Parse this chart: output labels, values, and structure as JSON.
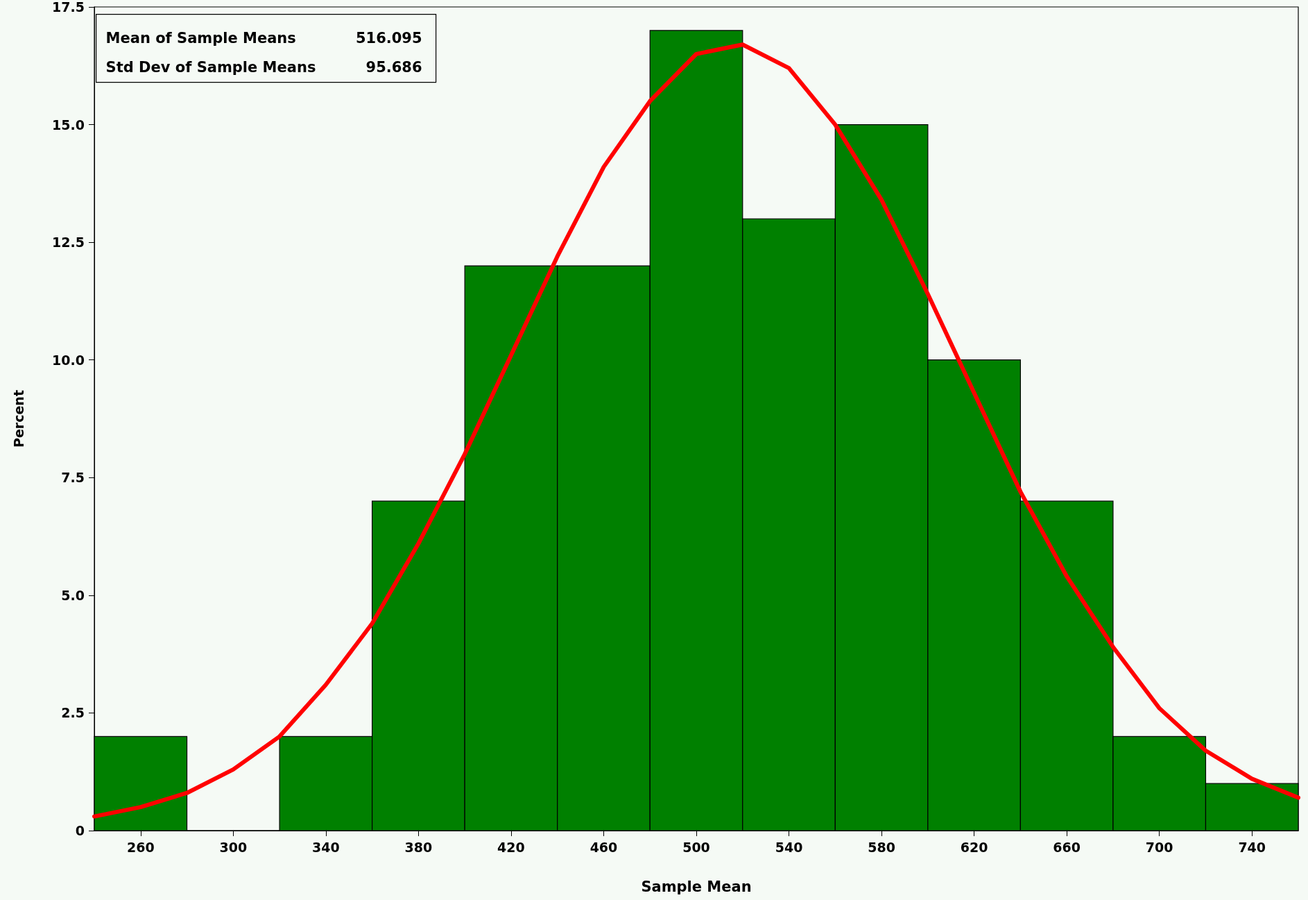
{
  "chart_data": {
    "type": "histogram",
    "xlabel": "Sample Mean",
    "ylabel": "Percent",
    "bins": [
      240,
      280,
      320,
      360,
      400,
      440,
      480,
      520,
      560,
      600,
      640,
      680,
      720,
      760
    ],
    "values": [
      2,
      0,
      2,
      7,
      12,
      12,
      17,
      13,
      15,
      10,
      7,
      2,
      1
    ],
    "color": "#008000",
    "series": [
      {
        "type": "line",
        "color": "#ff0000",
        "x": [
          240,
          260,
          280,
          300,
          320,
          340,
          360,
          380,
          400,
          420,
          440,
          460,
          480,
          500,
          520,
          540,
          560,
          580,
          600,
          620,
          640,
          660,
          680,
          700,
          720,
          740,
          760
        ],
        "values": [
          0.3,
          0.5,
          0.8,
          1.3,
          2.0,
          3.1,
          4.4,
          6.1,
          8.0,
          10.1,
          12.2,
          14.1,
          15.5,
          16.5,
          16.7,
          16.2,
          15.0,
          13.4,
          11.4,
          9.3,
          7.2,
          5.4,
          3.9,
          2.6,
          1.7,
          1.1,
          0.7
        ]
      }
    ],
    "xlim": [
      240,
      760
    ],
    "xticks": [
      260,
      300,
      340,
      380,
      420,
      460,
      500,
      540,
      580,
      620,
      660,
      700,
      740
    ],
    "ylim": [
      0,
      17.5
    ],
    "yticks": [
      0,
      2.5,
      {
        "value": 5,
        "label": "5.0"
      },
      7.5,
      {
        "value": 10,
        "label": "10.0"
      },
      12.5,
      {
        "value": 15,
        "label": "15.0"
      },
      17.5
    ],
    "grid": false,
    "annotations": [
      "Mean of Sample Means",
      "516.095",
      "Std Dev of Sample Means",
      "95.686"
    ]
  }
}
